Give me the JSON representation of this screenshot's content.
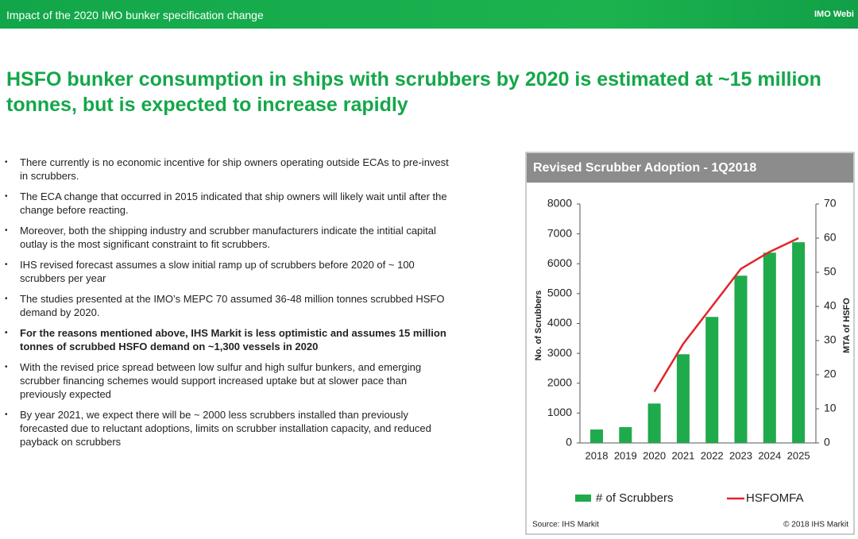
{
  "header": {
    "title": "Impact of the 2020 IMO bunker specification change",
    "right": "IMO Webi"
  },
  "headline": [
    "HSFO bunker consumption in ships with scrubbers by 2020 is estimated at ~15 million",
    "tonnes, but is expected to increase rapidly"
  ],
  "bullets": [
    {
      "text": "There currently is no economic incentive for ship owners operating outside ECAs to pre-invest in scrubbers.",
      "bold": false
    },
    {
      "text": "The ECA change that occurred in 2015 indicated that ship owners will likely wait until after the change before reacting.",
      "bold": false
    },
    {
      "text": "Moreover, both the shipping industry and scrubber manufacturers indicate the intitial capital outlay is the most significant constraint to fit scrubbers.",
      "bold": false
    },
    {
      "text": "IHS revised forecast assumes a slow initial ramp up of scrubbers before 2020 of ~ 100 scrubbers per year",
      "bold": false
    },
    {
      "text": "The studies presented at the IMO’s MEPC 70 assumed 36-48 million tonnes scrubbed HSFO demand by 2020.",
      "bold": false
    },
    {
      "text": "For the reasons mentioned above, IHS Markit is less optimistic and assumes 15 million tonnes of scrubbed HSFO demand on ~1,300 vessels in 2020",
      "bold": true
    },
    {
      "text": "With the revised price spread between low sulfur and high sulfur bunkers, and emerging scrubber financing schemes would support increased uptake but at slower pace than previously expected",
      "bold": false
    },
    {
      "text": "By year 2021, we expect there will be ~ 2000 less scrubbers installed than previously forecasted due to reluctant adoptions, limits on scrubber installation capacity, and reduced payback on scrubbers",
      "bold": false
    }
  ],
  "chart_data": {
    "type": "bar",
    "title": "Revised Scrubber Adoption - 1Q2018",
    "categories": [
      "2018",
      "2019",
      "2020",
      "2021",
      "2022",
      "2023",
      "2024",
      "2025"
    ],
    "series": [
      {
        "name": "# of Scrubbers",
        "type": "bar",
        "color": "#1faa4b",
        "values": [
          450,
          530,
          1320,
          2970,
          4220,
          5600,
          6370,
          6720
        ]
      },
      {
        "name": "HSFOMFA",
        "type": "line",
        "axis": "y2",
        "color": "#e3242b",
        "values": [
          null,
          null,
          15,
          29,
          40,
          51,
          56,
          60
        ]
      }
    ],
    "ylabel": "No. of Scrubbers",
    "y2label": "MTA of HSFO",
    "ylim": [
      0,
      8000
    ],
    "yticks": [
      0,
      1000,
      2000,
      3000,
      4000,
      5000,
      6000,
      7000,
      8000
    ],
    "y2lim": [
      0,
      70
    ],
    "y2ticks": [
      0,
      10,
      20,
      30,
      40,
      50,
      60,
      70
    ],
    "source": "Source: IHS Markit",
    "copyright": "© 2018 IHS Markit"
  }
}
